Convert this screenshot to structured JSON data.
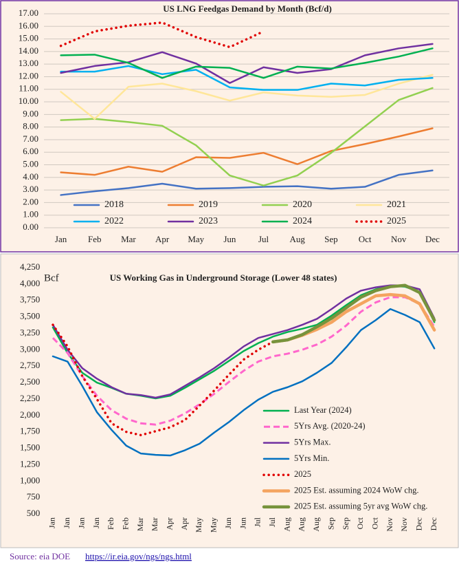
{
  "chart_data": [
    {
      "type": "line",
      "title": "US LNG Feedgas Demand by Month (Bcf/d)",
      "categories": [
        "Jan",
        "Feb",
        "Mar",
        "Apr",
        "May",
        "Jun",
        "Jul",
        "Aug",
        "Sep",
        "Oct",
        "Nov",
        "Dec"
      ],
      "ylim": [
        0,
        17
      ],
      "yticks": [
        {
          "value": 0,
          "label": "0.00"
        },
        {
          "value": 1,
          "label": "1.00"
        },
        {
          "value": 2,
          "label": "2.00"
        },
        {
          "value": 3,
          "label": "3.00"
        },
        {
          "value": 4,
          "label": "4.00"
        },
        {
          "value": 5,
          "label": "5.00"
        },
        {
          "value": 6,
          "label": "6.00"
        },
        {
          "value": 7,
          "label": "7.00"
        },
        {
          "value": 8,
          "label": "8.00"
        },
        {
          "value": 9,
          "label": "9.00"
        },
        {
          "value": 10,
          "label": "10.00"
        },
        {
          "value": 11,
          "label": "11.00"
        },
        {
          "value": 12,
          "label": "12.00"
        },
        {
          "value": 13,
          "label": "13.00"
        },
        {
          "value": 14,
          "label": "14.00"
        },
        {
          "value": 15,
          "label": "15.00"
        },
        {
          "value": 16,
          "label": "16.00"
        },
        {
          "value": 17,
          "label": "17.00"
        }
      ],
      "grid": true,
      "legend": "bottom",
      "series": [
        {
          "name": "2018",
          "color": "#4472c4",
          "values": [
            2.6,
            2.9,
            3.15,
            3.5,
            3.1,
            3.15,
            3.25,
            3.3,
            3.1,
            3.25,
            4.2,
            4.55
          ]
        },
        {
          "name": "2019",
          "color": "#ed7d31",
          "values": [
            4.4,
            4.2,
            4.85,
            4.45,
            5.6,
            5.55,
            5.95,
            5.05,
            6.1,
            6.65,
            7.25,
            7.9
          ]
        },
        {
          "name": "2020",
          "color": "#92d050",
          "values": [
            8.55,
            8.65,
            8.4,
            8.1,
            6.55,
            4.15,
            3.35,
            4.15,
            5.95,
            8.05,
            10.15,
            11.1
          ]
        },
        {
          "name": "2021",
          "color": "#ffe699",
          "values": [
            10.8,
            8.65,
            11.2,
            11.45,
            10.85,
            10.1,
            10.75,
            10.5,
            10.4,
            10.55,
            11.45,
            12.15
          ]
        },
        {
          "name": "2022",
          "color": "#00b0f0",
          "values": [
            12.4,
            12.4,
            12.85,
            12.2,
            12.55,
            11.15,
            10.95,
            10.95,
            11.45,
            11.3,
            11.75,
            11.9
          ]
        },
        {
          "name": "2023",
          "color": "#7030a0",
          "values": [
            12.3,
            12.85,
            13.15,
            13.95,
            13.05,
            11.5,
            12.75,
            12.3,
            12.6,
            13.7,
            14.25,
            14.6
          ]
        },
        {
          "name": "2024",
          "color": "#00b050",
          "values": [
            13.7,
            13.75,
            13.1,
            11.9,
            12.8,
            12.7,
            11.9,
            12.8,
            12.65,
            13.1,
            13.6,
            14.25
          ]
        },
        {
          "name": "2025",
          "color": "#e00000",
          "style": "dotted",
          "values": [
            14.45,
            15.6,
            16.05,
            16.3,
            15.15,
            14.35,
            15.6,
            null,
            null,
            null,
            null,
            null
          ]
        }
      ]
    },
    {
      "type": "line",
      "title": "US Working Gas in Underground Storage (Lower 48 states)",
      "ylabel": "Bcf",
      "categories": [
        "Jan",
        "Jan",
        "Jan",
        "Jan",
        "Feb",
        "Feb",
        "Mar",
        "Mar",
        "Apr",
        "Apr",
        "May",
        "May",
        "Jun",
        "Jun",
        "Jul",
        "Jul",
        "Aug",
        "Aug",
        "Aug",
        "Sep",
        "Sep",
        "Oct",
        "Oct",
        "Nov",
        "Nov",
        "Dec",
        "Dec"
      ],
      "ylim": [
        500,
        4250
      ],
      "yticks": [
        500,
        750,
        {
          "value": 1000,
          "label": "1,000"
        },
        {
          "value": 1250,
          "label": "1,250"
        },
        {
          "value": 1500,
          "label": "1,500"
        },
        {
          "value": 1750,
          "label": "1,750"
        },
        {
          "value": 2000,
          "label": "2,000"
        },
        {
          "value": 2250,
          "label": "2,250"
        },
        {
          "value": 2500,
          "label": "2,500"
        },
        {
          "value": 2750,
          "label": "2,750"
        },
        {
          "value": 3000,
          "label": "3,000"
        },
        {
          "value": 3250,
          "label": "3,250"
        },
        {
          "value": 3500,
          "label": "3,500"
        },
        {
          "value": 3750,
          "label": "3,750"
        },
        {
          "value": 4000,
          "label": "4,000"
        },
        {
          "value": 4250,
          "label": "4,250"
        }
      ],
      "grid": false,
      "legend": "right",
      "series": [
        {
          "name": "Last Year (2024)",
          "color": "#00b050",
          "values": [
            3340,
            2950,
            2650,
            2500,
            2420,
            2330,
            2300,
            2260,
            2300,
            2420,
            2550,
            2680,
            2830,
            2980,
            3100,
            3200,
            3270,
            3320,
            3380,
            3520,
            3680,
            3830,
            3920,
            3970,
            3960,
            3880,
            3420
          ]
        },
        {
          "name": "5Yrs Avg. (2020-24)",
          "color": "#ff66cc",
          "style": "dashed",
          "values": [
            3180,
            2950,
            2600,
            2300,
            2080,
            1950,
            1880,
            1860,
            1920,
            2030,
            2170,
            2330,
            2510,
            2680,
            2820,
            2900,
            2940,
            3000,
            3080,
            3200,
            3370,
            3580,
            3720,
            3800,
            3800,
            3700,
            3350
          ]
        },
        {
          "name": "5Yrs Max.",
          "color": "#7030a0",
          "values": [
            3380,
            3000,
            2720,
            2560,
            2430,
            2330,
            2310,
            2270,
            2320,
            2450,
            2580,
            2720,
            2880,
            3050,
            3180,
            3240,
            3300,
            3380,
            3470,
            3620,
            3780,
            3900,
            3950,
            3980,
            3980,
            3920,
            3480
          ]
        },
        {
          "name": "5Yrs Min.",
          "color": "#0070c0",
          "values": [
            2900,
            2820,
            2450,
            2050,
            1780,
            1540,
            1420,
            1400,
            1390,
            1470,
            1570,
            1740,
            1900,
            2080,
            2240,
            2360,
            2430,
            2520,
            2650,
            2800,
            3040,
            3300,
            3450,
            3620,
            3530,
            3420,
            3020
          ]
        },
        {
          "name": "2025",
          "color": "#e00000",
          "style": "dotted",
          "values": [
            3380,
            3050,
            2600,
            2250,
            1880,
            1750,
            1700,
            1760,
            1820,
            1930,
            2150,
            2380,
            2620,
            2850,
            3000,
            3120,
            null,
            null,
            null,
            null,
            null,
            null,
            null,
            null,
            null,
            null,
            null
          ]
        },
        {
          "name": "2025 Est. assuming 2024 WoW chg.",
          "color": "#f4a460",
          "style": "thick",
          "values": [
            null,
            null,
            null,
            null,
            null,
            null,
            null,
            null,
            null,
            null,
            null,
            null,
            null,
            null,
            null,
            3120,
            3150,
            3220,
            3310,
            3420,
            3580,
            3700,
            3820,
            3840,
            3820,
            3700,
            3300
          ]
        },
        {
          "name": "2025 Est. assuming 5yr avg WoW chg.",
          "color": "#77933c",
          "style": "thick",
          "values": [
            null,
            null,
            null,
            null,
            null,
            null,
            null,
            null,
            null,
            null,
            null,
            null,
            null,
            null,
            null,
            3120,
            3150,
            3230,
            3350,
            3480,
            3640,
            3800,
            3900,
            3960,
            3980,
            3870,
            3450
          ]
        }
      ]
    }
  ],
  "source": {
    "label": "Source: eia DOE",
    "url": "https://ir.eia.gov/ngs/ngs.html"
  }
}
